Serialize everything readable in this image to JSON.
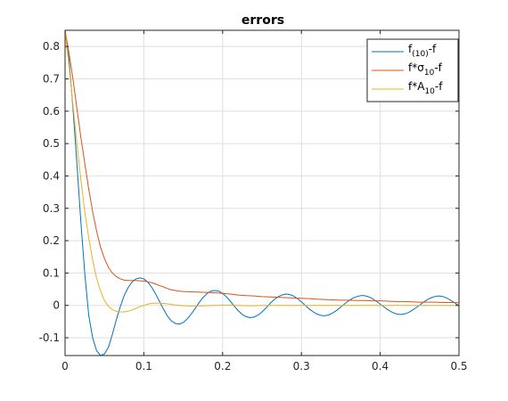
{
  "chart_data": {
    "type": "line",
    "title": "errors",
    "xlabel": "",
    "ylabel": "",
    "xlim": [
      0,
      0.5
    ],
    "ylim": [
      -0.155,
      0.85
    ],
    "grid": true,
    "legend_position": "top-right",
    "x_ticks": [
      0,
      0.1,
      0.2,
      0.3,
      0.4,
      0.5
    ],
    "x_tick_labels": [
      "0",
      "0.1",
      "0.2",
      "0.3",
      "0.4",
      "0.5"
    ],
    "y_ticks": [
      -0.1,
      0,
      0.1,
      0.2,
      0.3,
      0.4,
      0.5,
      0.6,
      0.7,
      0.8
    ],
    "y_tick_labels": [
      "-0.1",
      "0",
      "0.1",
      "0.2",
      "0.3",
      "0.4",
      "0.5",
      "0.6",
      "0.7",
      "0.8"
    ],
    "series": [
      {
        "name_main": "f",
        "name_sub": "(10)",
        "name_tail": "-f",
        "color": "#0072bd",
        "points": [
          [
            0,
            0.85
          ],
          [
            0.005,
            0.76
          ],
          [
            0.01,
            0.61
          ],
          [
            0.015,
            0.44
          ],
          [
            0.02,
            0.26
          ],
          [
            0.025,
            0.1
          ],
          [
            0.03,
            -0.03
          ],
          [
            0.035,
            -0.1
          ],
          [
            0.04,
            -0.14
          ],
          [
            0.045,
            -0.155
          ],
          [
            0.05,
            -0.15
          ],
          [
            0.055,
            -0.13
          ],
          [
            0.06,
            -0.09
          ],
          [
            0.065,
            -0.045
          ],
          [
            0.07,
            -0.005
          ],
          [
            0.075,
            0.03
          ],
          [
            0.08,
            0.055
          ],
          [
            0.085,
            0.072
          ],
          [
            0.09,
            0.082
          ],
          [
            0.095,
            0.085
          ],
          [
            0.1,
            0.082
          ],
          [
            0.105,
            0.072
          ],
          [
            0.11,
            0.056
          ],
          [
            0.115,
            0.035
          ],
          [
            0.12,
            0.012
          ],
          [
            0.125,
            -0.012
          ],
          [
            0.13,
            -0.033
          ],
          [
            0.135,
            -0.048
          ],
          [
            0.14,
            -0.056
          ],
          [
            0.145,
            -0.058
          ],
          [
            0.15,
            -0.053
          ],
          [
            0.155,
            -0.042
          ],
          [
            0.16,
            -0.027
          ],
          [
            0.165,
            -0.01
          ],
          [
            0.17,
            0.008
          ],
          [
            0.175,
            0.024
          ],
          [
            0.18,
            0.036
          ],
          [
            0.185,
            0.044
          ],
          [
            0.19,
            0.046
          ],
          [
            0.195,
            0.044
          ],
          [
            0.2,
            0.037
          ],
          [
            0.205,
            0.026
          ],
          [
            0.21,
            0.012
          ],
          [
            0.215,
            -0.003
          ],
          [
            0.22,
            -0.017
          ],
          [
            0.225,
            -0.028
          ],
          [
            0.23,
            -0.035
          ],
          [
            0.235,
            -0.038
          ],
          [
            0.24,
            -0.036
          ],
          [
            0.245,
            -0.03
          ],
          [
            0.25,
            -0.02
          ],
          [
            0.255,
            -0.008
          ],
          [
            0.26,
            0.005
          ],
          [
            0.265,
            0.017
          ],
          [
            0.27,
            0.026
          ],
          [
            0.275,
            0.032
          ],
          [
            0.28,
            0.035
          ],
          [
            0.285,
            0.034
          ],
          [
            0.29,
            0.029
          ],
          [
            0.295,
            0.021
          ],
          [
            0.3,
            0.011
          ],
          [
            0.305,
            0.0
          ],
          [
            0.31,
            -0.011
          ],
          [
            0.315,
            -0.02
          ],
          [
            0.32,
            -0.027
          ],
          [
            0.325,
            -0.031
          ],
          [
            0.33,
            -0.032
          ],
          [
            0.335,
            -0.029
          ],
          [
            0.34,
            -0.023
          ],
          [
            0.345,
            -0.015
          ],
          [
            0.35,
            -0.005
          ],
          [
            0.355,
            0.005
          ],
          [
            0.36,
            0.014
          ],
          [
            0.365,
            0.022
          ],
          [
            0.37,
            0.027
          ],
          [
            0.375,
            0.03
          ],
          [
            0.38,
            0.03
          ],
          [
            0.385,
            0.027
          ],
          [
            0.39,
            0.021
          ],
          [
            0.395,
            0.013
          ],
          [
            0.4,
            0.004
          ],
          [
            0.405,
            -0.005
          ],
          [
            0.41,
            -0.014
          ],
          [
            0.415,
            -0.021
          ],
          [
            0.42,
            -0.026
          ],
          [
            0.425,
            -0.028
          ],
          [
            0.43,
            -0.027
          ],
          [
            0.435,
            -0.023
          ],
          [
            0.44,
            -0.016
          ],
          [
            0.445,
            -0.008
          ],
          [
            0.45,
            0.001
          ],
          [
            0.455,
            0.01
          ],
          [
            0.46,
            0.018
          ],
          [
            0.465,
            0.024
          ],
          [
            0.47,
            0.028
          ],
          [
            0.475,
            0.029
          ],
          [
            0.48,
            0.027
          ],
          [
            0.485,
            0.022
          ],
          [
            0.49,
            0.015
          ],
          [
            0.495,
            0.007
          ],
          [
            0.5,
            -0.002
          ]
        ]
      },
      {
        "name_main": "f*σ",
        "name_sub": "10",
        "name_tail": "-f",
        "color": "#d95319",
        "points": [
          [
            0,
            0.85
          ],
          [
            0.005,
            0.78
          ],
          [
            0.01,
            0.7
          ],
          [
            0.015,
            0.61
          ],
          [
            0.02,
            0.52
          ],
          [
            0.025,
            0.44
          ],
          [
            0.03,
            0.36
          ],
          [
            0.035,
            0.29
          ],
          [
            0.04,
            0.23
          ],
          [
            0.045,
            0.18
          ],
          [
            0.05,
            0.145
          ],
          [
            0.055,
            0.118
          ],
          [
            0.06,
            0.1
          ],
          [
            0.065,
            0.089
          ],
          [
            0.07,
            0.082
          ],
          [
            0.075,
            0.078
          ],
          [
            0.08,
            0.077
          ],
          [
            0.085,
            0.077
          ],
          [
            0.09,
            0.077
          ],
          [
            0.095,
            0.076
          ],
          [
            0.1,
            0.075
          ],
          [
            0.105,
            0.073
          ],
          [
            0.11,
            0.07
          ],
          [
            0.115,
            0.066
          ],
          [
            0.12,
            0.061
          ],
          [
            0.125,
            0.057
          ],
          [
            0.13,
            0.052
          ],
          [
            0.135,
            0.048
          ],
          [
            0.14,
            0.046
          ],
          [
            0.145,
            0.044
          ],
          [
            0.15,
            0.043
          ],
          [
            0.16,
            0.042
          ],
          [
            0.17,
            0.041
          ],
          [
            0.18,
            0.04
          ],
          [
            0.19,
            0.039
          ],
          [
            0.2,
            0.037
          ],
          [
            0.21,
            0.035
          ],
          [
            0.22,
            0.032
          ],
          [
            0.23,
            0.03
          ],
          [
            0.24,
            0.029
          ],
          [
            0.25,
            0.027
          ],
          [
            0.26,
            0.026
          ],
          [
            0.27,
            0.025
          ],
          [
            0.28,
            0.024
          ],
          [
            0.29,
            0.023
          ],
          [
            0.3,
            0.022
          ],
          [
            0.31,
            0.021
          ],
          [
            0.32,
            0.019
          ],
          [
            0.33,
            0.018
          ],
          [
            0.34,
            0.017
          ],
          [
            0.35,
            0.016
          ],
          [
            0.36,
            0.016
          ],
          [
            0.37,
            0.015
          ],
          [
            0.38,
            0.015
          ],
          [
            0.39,
            0.014
          ],
          [
            0.4,
            0.014
          ],
          [
            0.41,
            0.013
          ],
          [
            0.42,
            0.012
          ],
          [
            0.43,
            0.012
          ],
          [
            0.44,
            0.011
          ],
          [
            0.45,
            0.01
          ],
          [
            0.46,
            0.01
          ],
          [
            0.47,
            0.01
          ],
          [
            0.48,
            0.009
          ],
          [
            0.49,
            0.009
          ],
          [
            0.5,
            0.008
          ]
        ]
      },
      {
        "name_main": "f*A",
        "name_sub": "10",
        "name_tail": "-f",
        "color": "#edb120",
        "points": [
          [
            0,
            0.85
          ],
          [
            0.005,
            0.74
          ],
          [
            0.01,
            0.62
          ],
          [
            0.015,
            0.5
          ],
          [
            0.02,
            0.39
          ],
          [
            0.025,
            0.29
          ],
          [
            0.03,
            0.21
          ],
          [
            0.035,
            0.14
          ],
          [
            0.04,
            0.085
          ],
          [
            0.045,
            0.045
          ],
          [
            0.05,
            0.015
          ],
          [
            0.055,
            -0.003
          ],
          [
            0.06,
            -0.013
          ],
          [
            0.065,
            -0.018
          ],
          [
            0.07,
            -0.02
          ],
          [
            0.075,
            -0.02
          ],
          [
            0.08,
            -0.018
          ],
          [
            0.085,
            -0.014
          ],
          [
            0.09,
            -0.009
          ],
          [
            0.095,
            -0.004
          ],
          [
            0.1,
            0.0
          ],
          [
            0.105,
            0.004
          ],
          [
            0.11,
            0.006
          ],
          [
            0.115,
            0.007
          ],
          [
            0.12,
            0.007
          ],
          [
            0.125,
            0.006
          ],
          [
            0.13,
            0.005
          ],
          [
            0.135,
            0.003
          ],
          [
            0.14,
            0.001
          ],
          [
            0.145,
            0.0
          ],
          [
            0.15,
            -0.001
          ],
          [
            0.16,
            -0.002
          ],
          [
            0.17,
            -0.002
          ],
          [
            0.18,
            -0.001
          ],
          [
            0.19,
            0.0
          ],
          [
            0.2,
            0.001
          ],
          [
            0.21,
            0.001
          ],
          [
            0.22,
            0.0
          ],
          [
            0.23,
            -0.001
          ],
          [
            0.24,
            -0.001
          ],
          [
            0.25,
            0.0
          ],
          [
            0.3,
            0.0
          ],
          [
            0.35,
            0.0
          ],
          [
            0.4,
            0.0
          ],
          [
            0.45,
            0.0
          ],
          [
            0.5,
            0.0
          ]
        ]
      }
    ]
  }
}
